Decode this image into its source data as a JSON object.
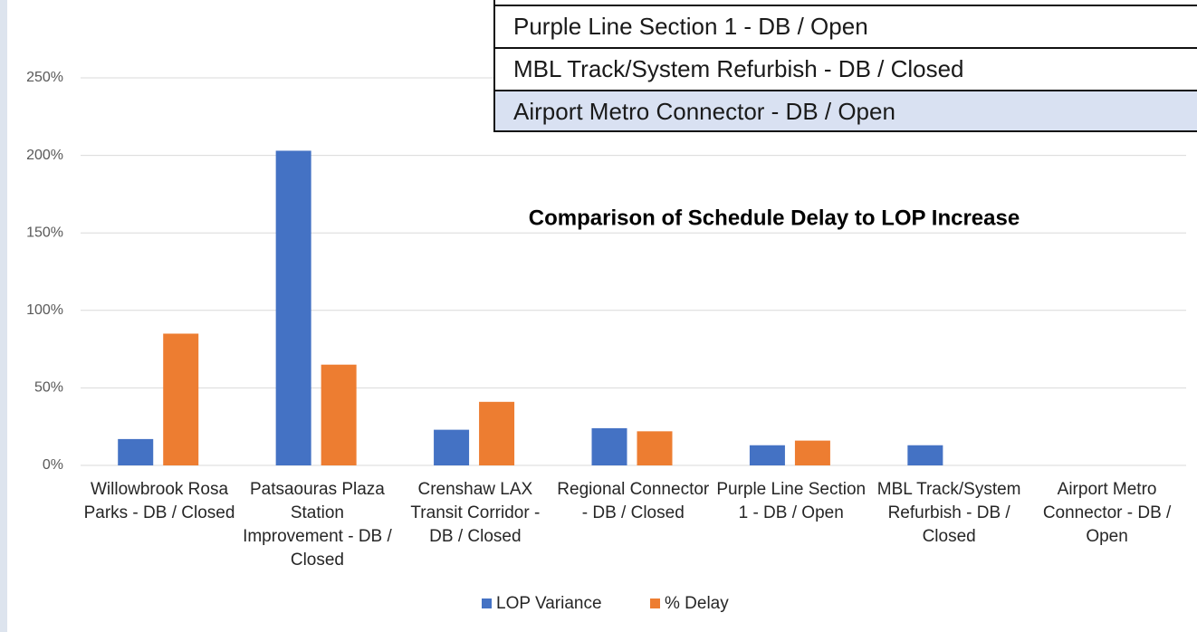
{
  "chart_data": {
    "type": "bar",
    "title": "Comparison of Schedule Delay to LOP Increase",
    "categories": [
      "Willowbrook Rosa Parks - DB / Closed",
      "Patsaouras Plaza Station Improvement - DB / Closed",
      "Crenshaw LAX Transit Corridor - DB / Closed",
      "Regional Connector - DB / Closed",
      "Purple Line Section 1 - DB / Open",
      "MBL Track/System Refurbish - DB / Closed",
      "Airport Metro Connector - DB / Open"
    ],
    "series": [
      {
        "name": "LOP Variance",
        "color": "#4472c4",
        "values": [
          17,
          203,
          23,
          24,
          13,
          13,
          0
        ]
      },
      {
        "name": "% Delay",
        "color": "#ed7d31",
        "values": [
          85,
          65,
          41,
          22,
          16,
          0,
          0
        ]
      }
    ],
    "ylim": [
      0,
      300
    ],
    "yticks": [
      {
        "value": 0,
        "label": "0%"
      },
      {
        "value": 50,
        "label": "50%"
      },
      {
        "value": 100,
        "label": "100%"
      },
      {
        "value": 150,
        "label": "150%"
      },
      {
        "value": 200,
        "label": "200%"
      },
      {
        "value": 250,
        "label": "250%"
      }
    ],
    "grid": true,
    "legend": "bottom"
  },
  "table": {
    "rows": [
      "Purple Line Section 1 - DB / Open",
      "MBL Track/System Refurbish - DB / Closed",
      "Airport Metro Connector - DB / Open"
    ]
  }
}
